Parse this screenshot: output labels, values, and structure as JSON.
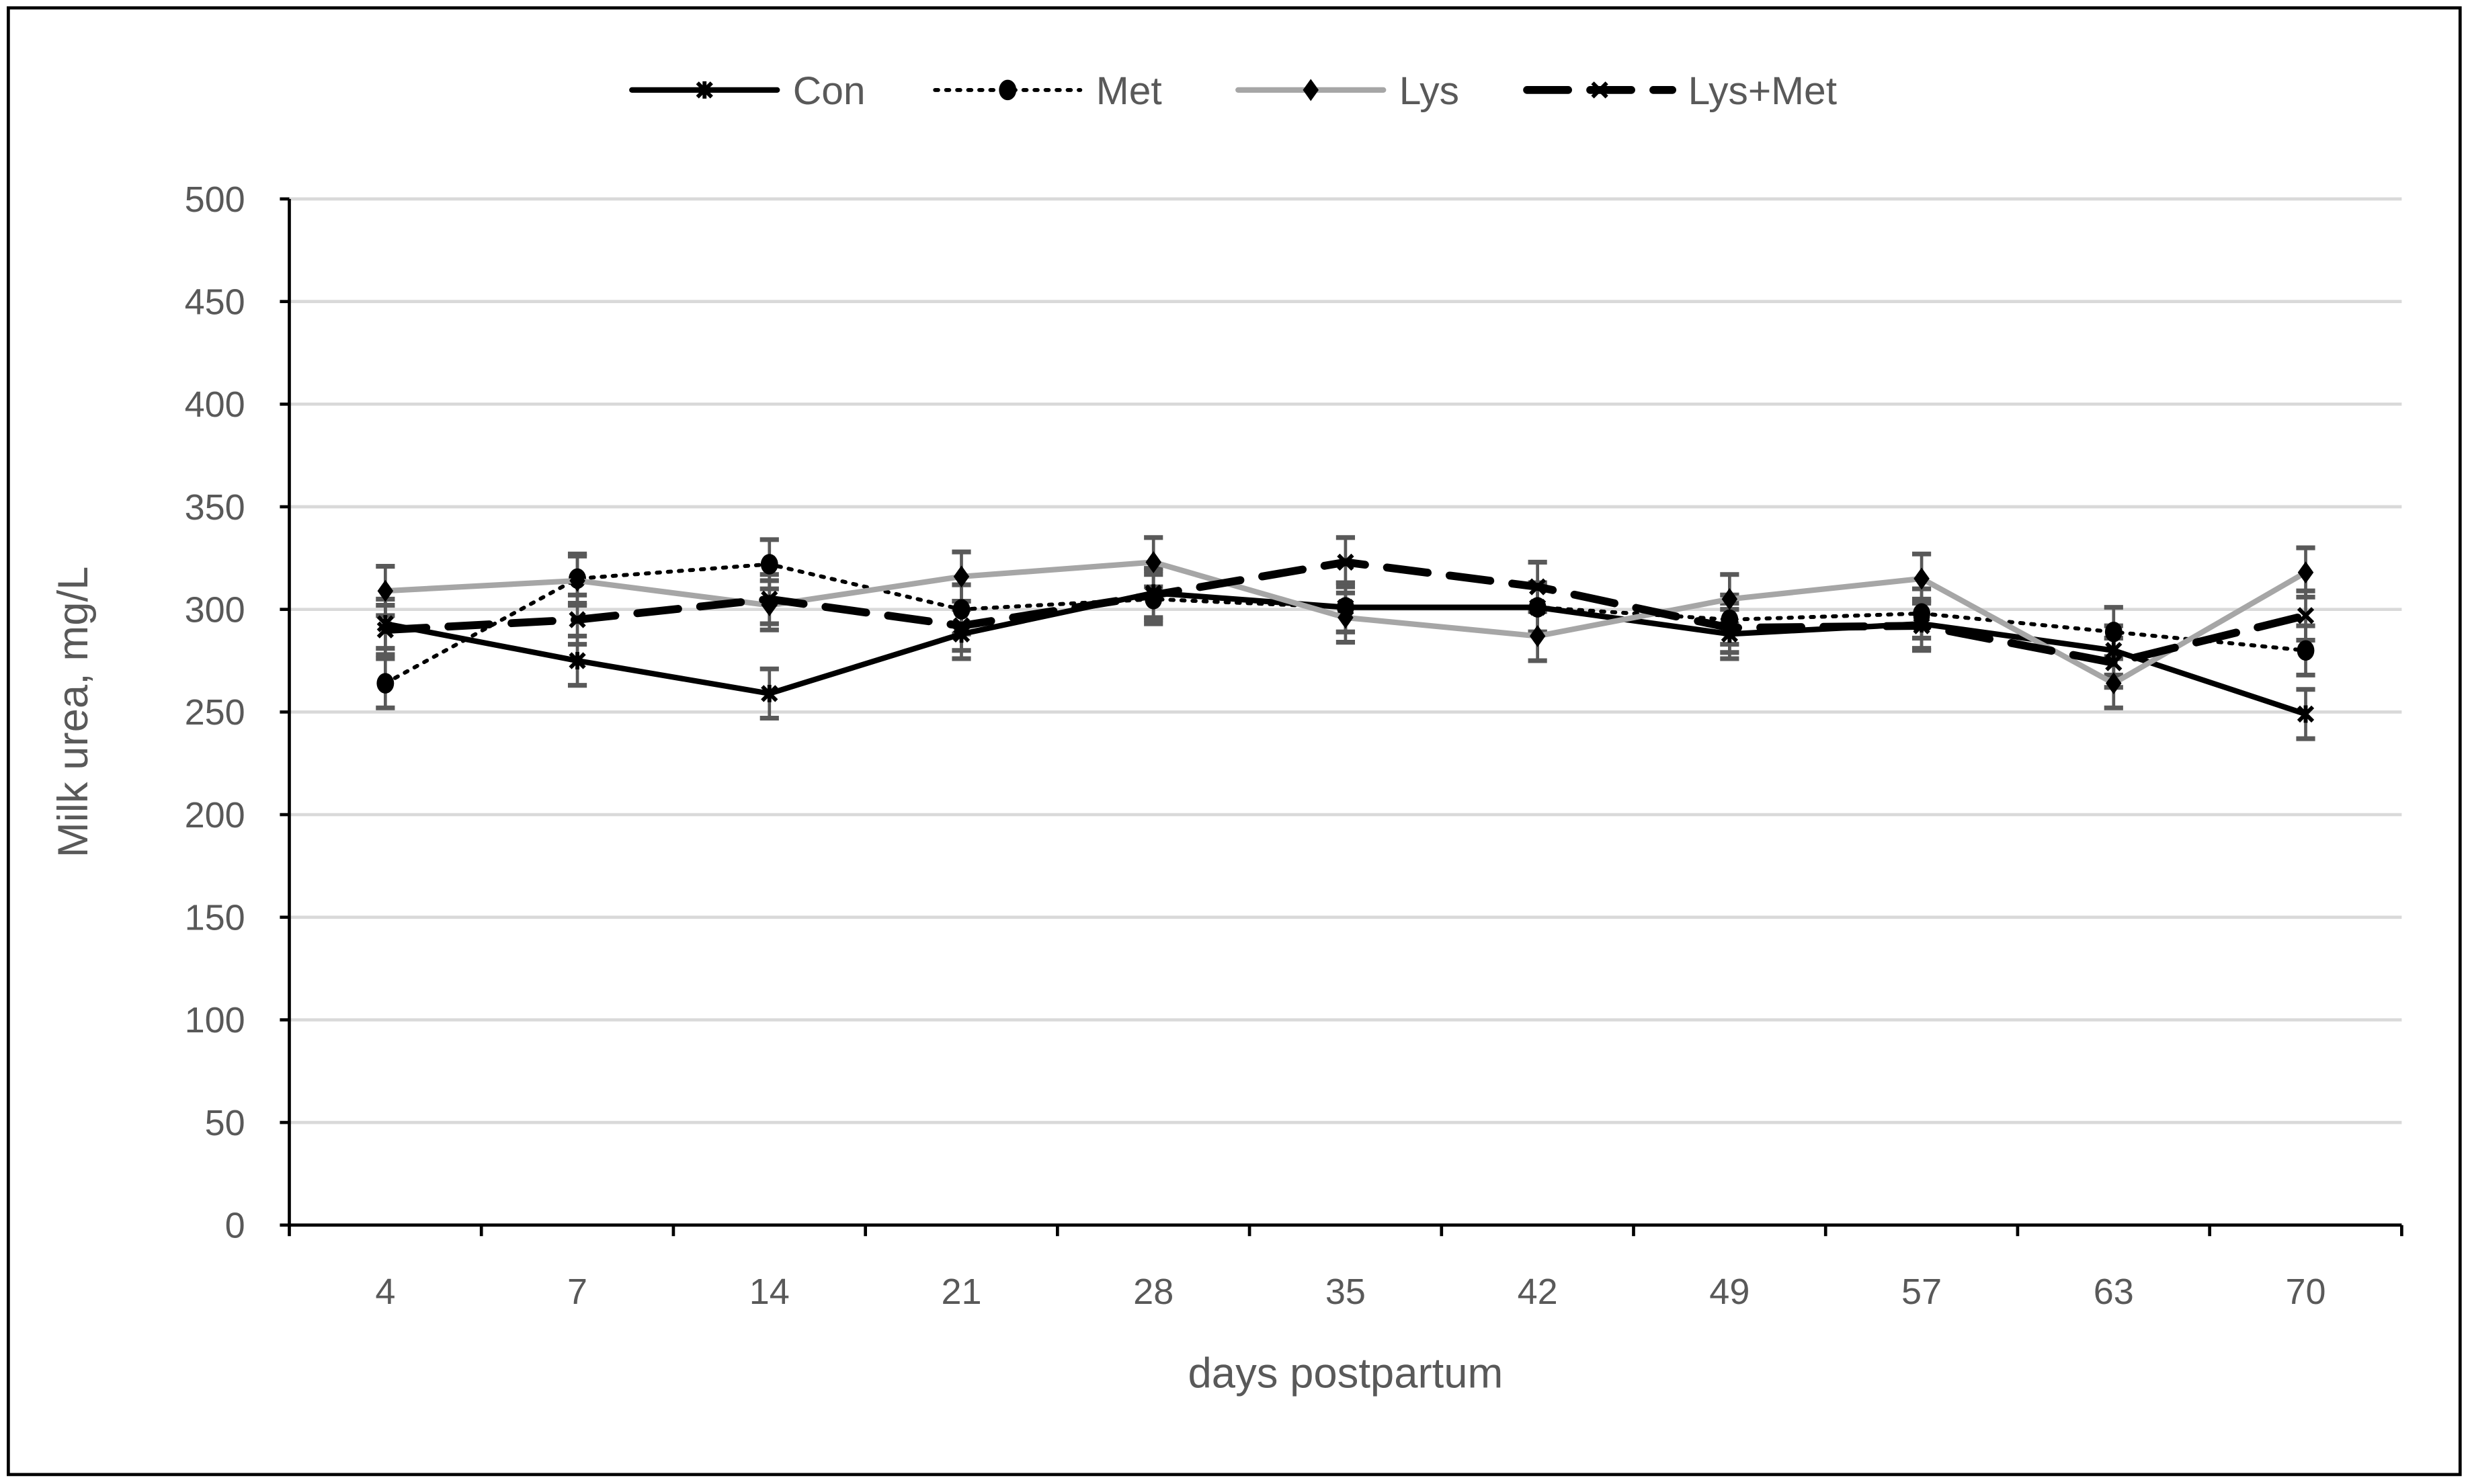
{
  "chart_data": {
    "type": "line",
    "title": "",
    "xlabel": "days postpartum",
    "ylabel": "Milk urea, mg/L",
    "categories": [
      "4",
      "7",
      "14",
      "21",
      "28",
      "35",
      "42",
      "49",
      "57",
      "63",
      "70"
    ],
    "ylim": [
      0,
      500
    ],
    "yticks": [
      0,
      50,
      100,
      150,
      200,
      250,
      300,
      350,
      400,
      450,
      500
    ],
    "grid": true,
    "legend_position": "top",
    "error_bars": true,
    "series": [
      {
        "name": "Con",
        "color": "#000000",
        "style": "solid",
        "marker": "star",
        "values": [
          293,
          275,
          259,
          288,
          308,
          301,
          301,
          288,
          293,
          280,
          249
        ],
        "error": [
          12,
          12,
          12,
          12,
          12,
          12,
          12,
          12,
          12,
          12,
          12
        ]
      },
      {
        "name": "Met",
        "color": "#000000",
        "style": "dotted",
        "marker": "circle",
        "values": [
          264,
          315,
          322,
          300,
          305,
          301,
          301,
          295,
          298,
          289,
          280
        ],
        "error": [
          12,
          12,
          12,
          12,
          12,
          12,
          12,
          12,
          12,
          12,
          12
        ]
      },
      {
        "name": "Lys",
        "color": "#a6a6a6",
        "style": "solid",
        "marker": "diamond",
        "values": [
          309,
          314,
          302,
          316,
          323,
          296,
          287,
          305,
          315,
          264,
          318
        ],
        "error": [
          12,
          12,
          12,
          12,
          12,
          12,
          12,
          12,
          12,
          12,
          12
        ]
      },
      {
        "name": "Lys+Met",
        "color": "#000000",
        "style": "dashed",
        "marker": "x",
        "values": [
          290,
          295,
          305,
          292,
          307,
          323,
          311,
          291,
          292,
          274,
          297
        ],
        "error": [
          12,
          12,
          12,
          12,
          12,
          12,
          12,
          12,
          12,
          12,
          12
        ]
      }
    ]
  }
}
